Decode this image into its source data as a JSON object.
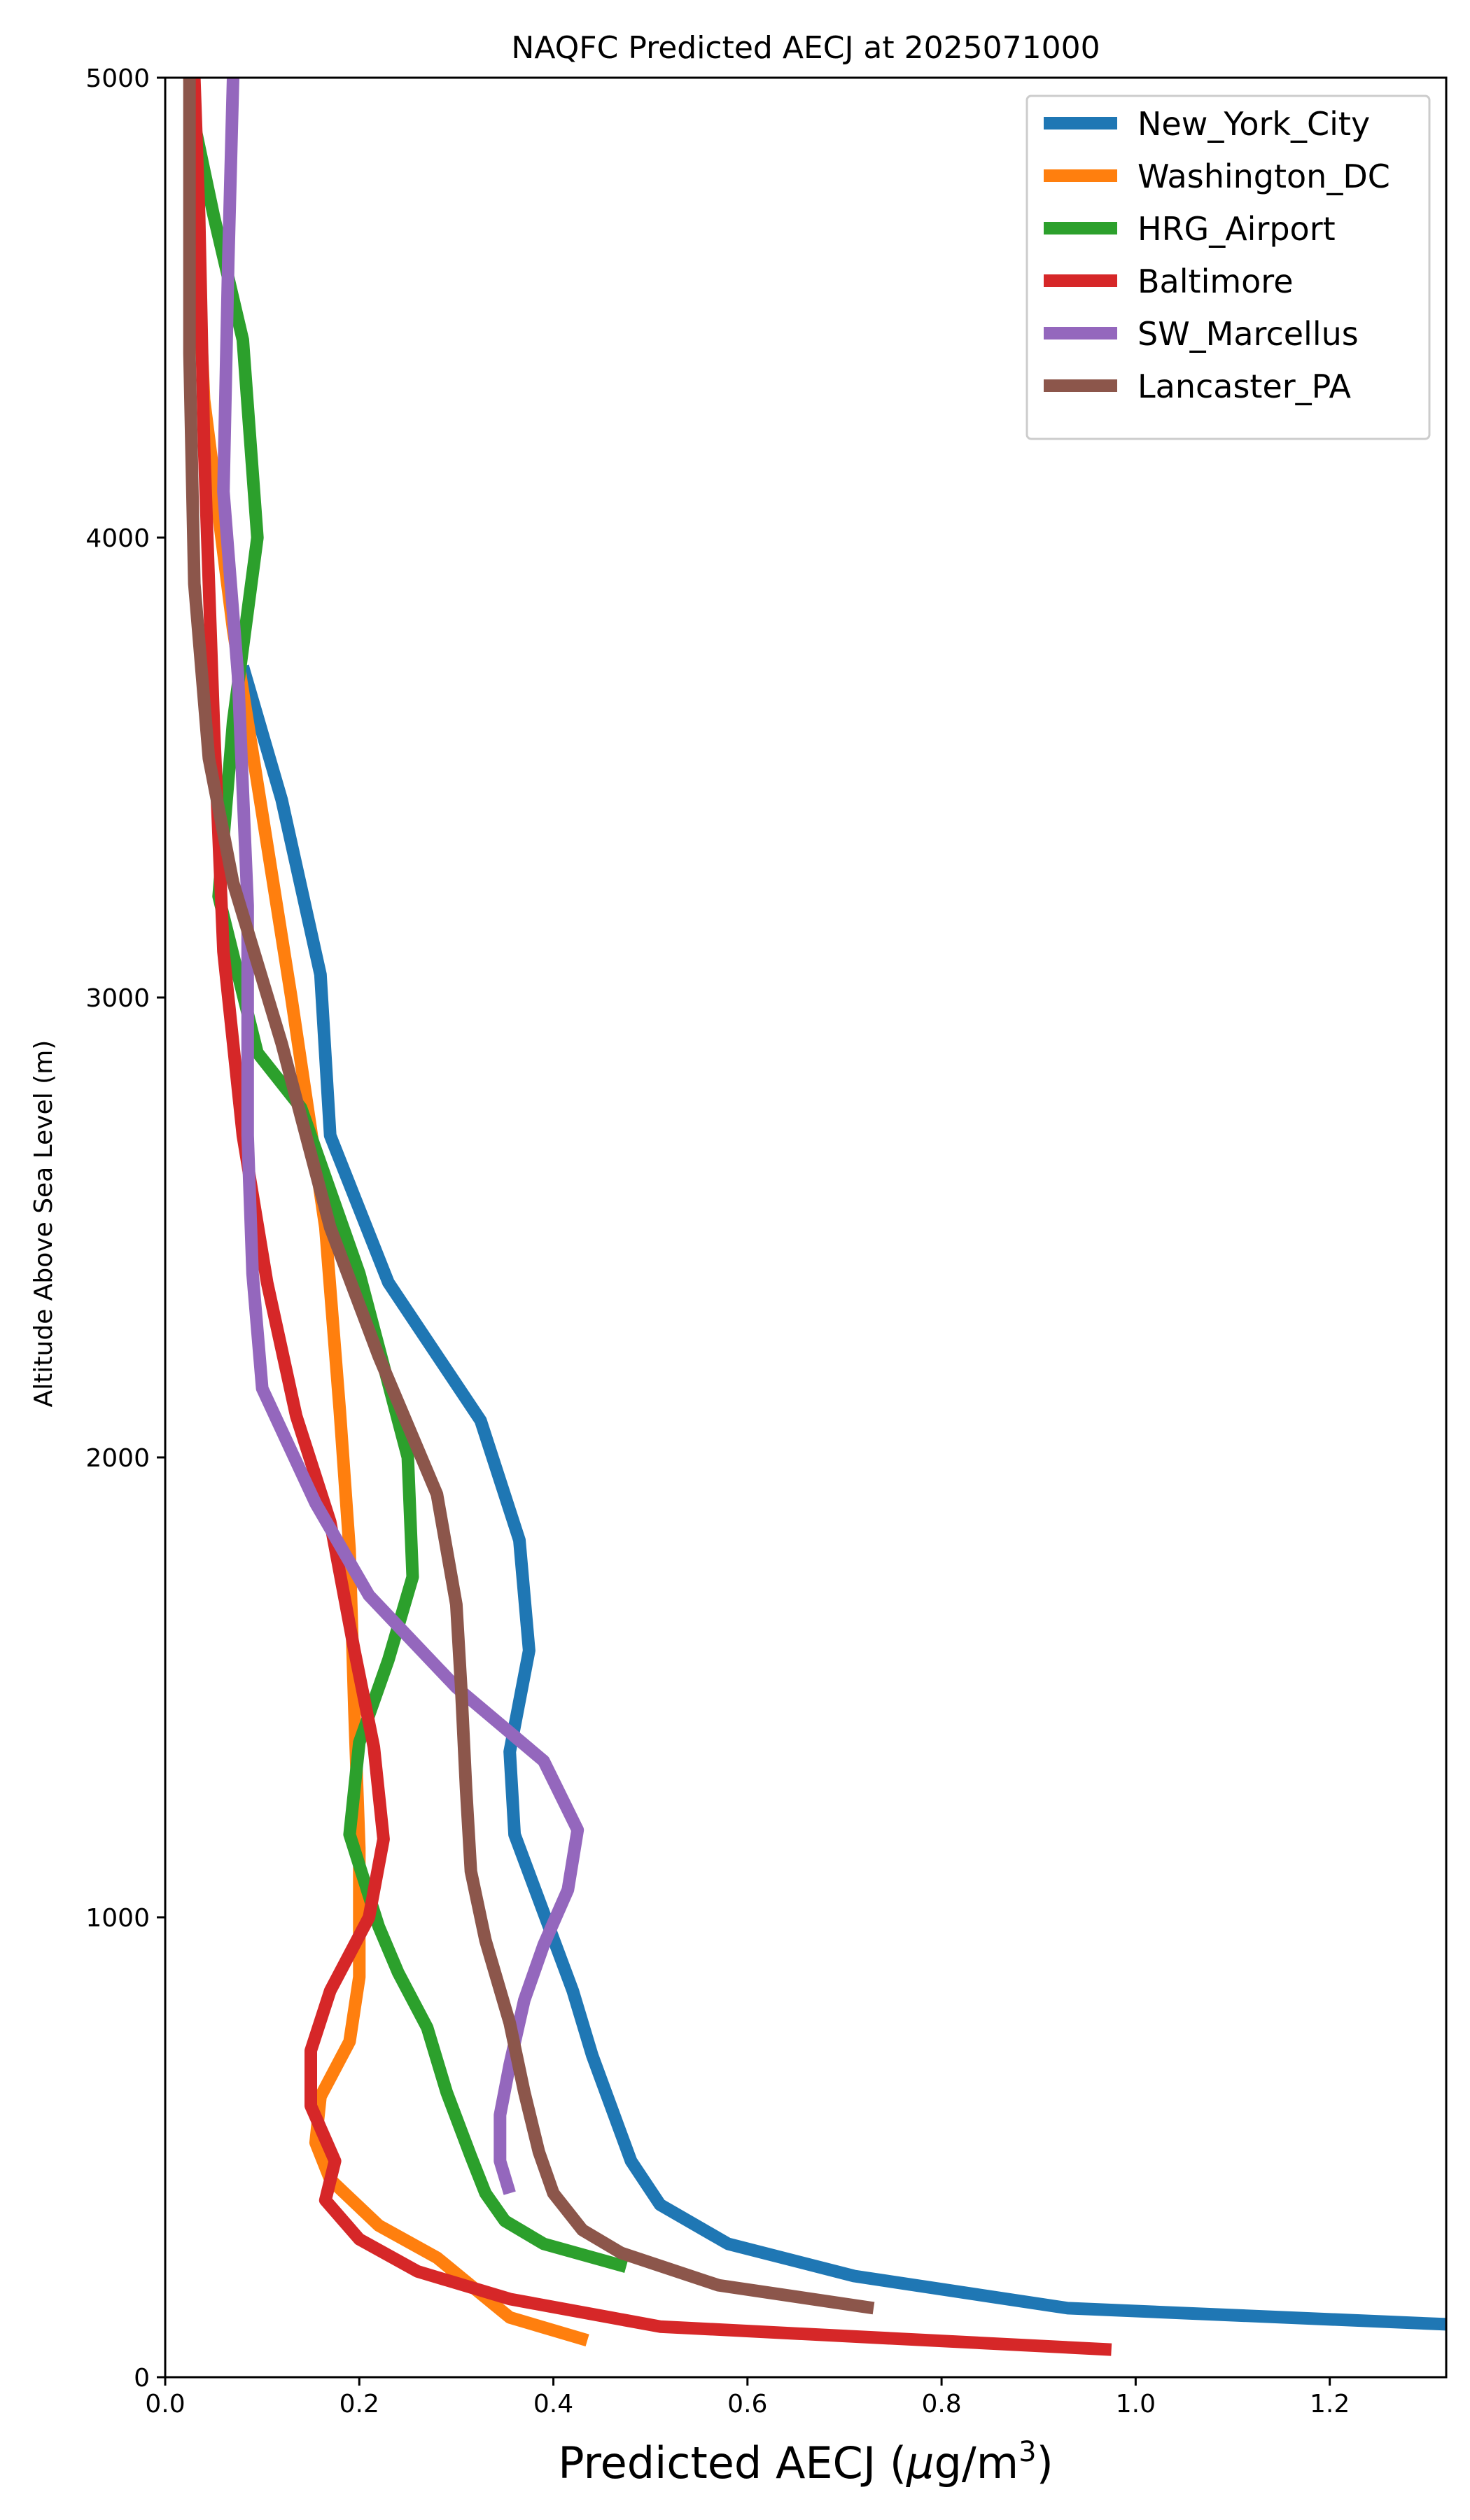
{
  "chart_data": {
    "type": "line",
    "title": "NAQFC Predicted AECJ at 2025071000",
    "xlabel_prefix": "Predicted AECJ (",
    "xlabel_mu": "μ",
    "xlabel_unit": "g/m",
    "xlabel_sup": "3",
    "xlabel_suffix": ")",
    "ylabel": "Altitude Above Sea Level (m)",
    "xlim": [
      0,
      1.32
    ],
    "ylim": [
      0,
      5000
    ],
    "xticks": [
      "0.0",
      "0.2",
      "0.4",
      "0.6",
      "0.8",
      "1.0",
      "1.2"
    ],
    "xtick_values": [
      0,
      0.2,
      0.4,
      0.6,
      0.8,
      1.0,
      1.2
    ],
    "yticks": [
      "0",
      "1000",
      "2000",
      "3000",
      "4000",
      "5000"
    ],
    "ytick_values": [
      0,
      1000,
      2000,
      3000,
      4000,
      5000
    ],
    "grid": false,
    "legend_position": "top-right",
    "series": [
      {
        "name": "New_York_City",
        "color": "#1f77b4",
        "points": [
          [
            1.32,
            115
          ],
          [
            0.93,
            150
          ],
          [
            0.71,
            220
          ],
          [
            0.58,
            290
          ],
          [
            0.51,
            375
          ],
          [
            0.48,
            470
          ],
          [
            0.44,
            700
          ],
          [
            0.42,
            840
          ],
          [
            0.36,
            1180
          ],
          [
            0.355,
            1360
          ],
          [
            0.375,
            1580
          ],
          [
            0.365,
            1820
          ],
          [
            0.325,
            2080
          ],
          [
            0.23,
            2380
          ],
          [
            0.17,
            2700
          ],
          [
            0.16,
            3050
          ],
          [
            0.12,
            3430
          ],
          [
            0.08,
            3720
          ]
        ]
      },
      {
        "name": "Washington_DC",
        "color": "#ff7f0e",
        "points": [
          [
            0.435,
            80
          ],
          [
            0.355,
            130
          ],
          [
            0.28,
            260
          ],
          [
            0.22,
            330
          ],
          [
            0.17,
            430
          ],
          [
            0.155,
            510
          ],
          [
            0.16,
            610
          ],
          [
            0.19,
            730
          ],
          [
            0.2,
            870
          ],
          [
            0.2,
            1150
          ],
          [
            0.195,
            1450
          ],
          [
            0.19,
            1800
          ],
          [
            0.18,
            2100
          ],
          [
            0.165,
            2500
          ],
          [
            0.13,
            3000
          ],
          [
            0.1,
            3400
          ],
          [
            0.07,
            3800
          ],
          [
            0.04,
            4300
          ],
          [
            0.025,
            5000
          ]
        ]
      },
      {
        "name": "HRG_Airport",
        "color": "#2ca02c",
        "points": [
          [
            0.475,
            240
          ],
          [
            0.39,
            290
          ],
          [
            0.35,
            340
          ],
          [
            0.33,
            400
          ],
          [
            0.315,
            480
          ],
          [
            0.29,
            620
          ],
          [
            0.27,
            760
          ],
          [
            0.24,
            880
          ],
          [
            0.22,
            980
          ],
          [
            0.19,
            1180
          ],
          [
            0.2,
            1380
          ],
          [
            0.23,
            1560
          ],
          [
            0.255,
            1740
          ],
          [
            0.25,
            2000
          ],
          [
            0.2,
            2400
          ],
          [
            0.14,
            2760
          ],
          [
            0.095,
            2880
          ],
          [
            0.055,
            3220
          ],
          [
            0.07,
            3600
          ],
          [
            0.095,
            4000
          ],
          [
            0.08,
            4430
          ],
          [
            0.05,
            4700
          ],
          [
            0.03,
            4900
          ]
        ]
      },
      {
        "name": "Baltimore",
        "color": "#d62728",
        "points": [
          [
            0.975,
            60
          ],
          [
            0.51,
            110
          ],
          [
            0.355,
            170
          ],
          [
            0.26,
            230
          ],
          [
            0.2,
            300
          ],
          [
            0.165,
            385
          ],
          [
            0.175,
            470
          ],
          [
            0.15,
            590
          ],
          [
            0.15,
            710
          ],
          [
            0.17,
            840
          ],
          [
            0.21,
            1000
          ],
          [
            0.225,
            1170
          ],
          [
            0.215,
            1370
          ],
          [
            0.195,
            1580
          ],
          [
            0.17,
            1860
          ],
          [
            0.135,
            2090
          ],
          [
            0.105,
            2380
          ],
          [
            0.08,
            2700
          ],
          [
            0.06,
            3100
          ],
          [
            0.05,
            3600
          ],
          [
            0.04,
            4200
          ],
          [
            0.035,
            4700
          ],
          [
            0.03,
            5000
          ]
        ]
      },
      {
        "name": "SW_Marcellus",
        "color": "#9467bd",
        "points": [
          [
            0.355,
            400
          ],
          [
            0.345,
            470
          ],
          [
            0.345,
            570
          ],
          [
            0.355,
            680
          ],
          [
            0.37,
            820
          ],
          [
            0.39,
            940
          ],
          [
            0.415,
            1060
          ],
          [
            0.425,
            1190
          ],
          [
            0.39,
            1340
          ],
          [
            0.3,
            1500
          ],
          [
            0.21,
            1700
          ],
          [
            0.155,
            1900
          ],
          [
            0.1,
            2150
          ],
          [
            0.09,
            2400
          ],
          [
            0.085,
            2700
          ],
          [
            0.085,
            3200
          ],
          [
            0.075,
            3700
          ],
          [
            0.06,
            4100
          ],
          [
            0.065,
            4600
          ],
          [
            0.07,
            5000
          ]
        ]
      },
      {
        "name": "Lancaster_PA",
        "color": "#8c564b",
        "points": [
          [
            0.73,
            150
          ],
          [
            0.57,
            200
          ],
          [
            0.47,
            270
          ],
          [
            0.43,
            320
          ],
          [
            0.4,
            400
          ],
          [
            0.385,
            490
          ],
          [
            0.37,
            620
          ],
          [
            0.355,
            770
          ],
          [
            0.33,
            950
          ],
          [
            0.315,
            1100
          ],
          [
            0.31,
            1280
          ],
          [
            0.305,
            1500
          ],
          [
            0.3,
            1680
          ],
          [
            0.28,
            1920
          ],
          [
            0.22,
            2220
          ],
          [
            0.17,
            2500
          ],
          [
            0.12,
            2900
          ],
          [
            0.07,
            3250
          ],
          [
            0.045,
            3520
          ],
          [
            0.03,
            3900
          ],
          [
            0.025,
            4400
          ],
          [
            0.025,
            4800
          ],
          [
            0.025,
            5000
          ]
        ]
      }
    ]
  }
}
